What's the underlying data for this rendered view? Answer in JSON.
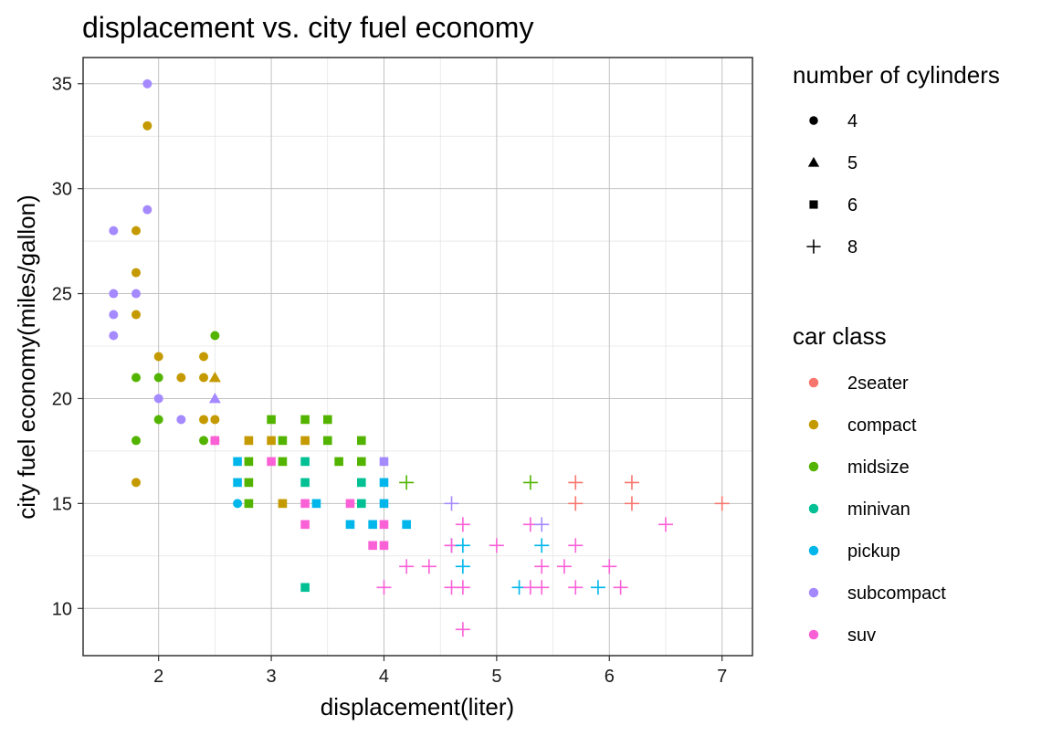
{
  "chart_data": {
    "type": "scatter",
    "title": "displacement vs. city fuel economy",
    "xlabel": "displacement(liter)",
    "ylabel": "city fuel economy(miles/gallon)",
    "xlim": [
      1.33,
      7.27
    ],
    "ylim": [
      7.75,
      36.25
    ],
    "xticks": [
      2,
      3,
      4,
      5,
      6,
      7
    ],
    "yticks": [
      10,
      15,
      20,
      25,
      30,
      35
    ],
    "grid": true,
    "legend_position": "right",
    "legends": {
      "shape": {
        "title": "number of cylinders",
        "entries": [
          {
            "label": "4",
            "shape": "circle"
          },
          {
            "label": "5",
            "shape": "triangle"
          },
          {
            "label": "6",
            "shape": "square"
          },
          {
            "label": "8",
            "shape": "plus"
          }
        ]
      },
      "color": {
        "title": "car class",
        "entries": [
          {
            "label": "2seater",
            "color": "#F8766D"
          },
          {
            "label": "compact",
            "color": "#C49A00"
          },
          {
            "label": "midsize",
            "color": "#53B400"
          },
          {
            "label": "minivan",
            "color": "#00C094"
          },
          {
            "label": "pickup",
            "color": "#00B6EB"
          },
          {
            "label": "subcompact",
            "color": "#A58AFF"
          },
          {
            "label": "suv",
            "color": "#FB61D7"
          }
        ]
      }
    },
    "points": [
      {
        "x": 1.6,
        "y": 28,
        "cyl": "4",
        "class": "subcompact"
      },
      {
        "x": 1.6,
        "y": 25,
        "cyl": "4",
        "class": "subcompact"
      },
      {
        "x": 1.6,
        "y": 24,
        "cyl": "4",
        "class": "subcompact"
      },
      {
        "x": 1.6,
        "y": 23,
        "cyl": "4",
        "class": "subcompact"
      },
      {
        "x": 1.8,
        "y": 28,
        "cyl": "4",
        "class": "compact"
      },
      {
        "x": 1.8,
        "y": 26,
        "cyl": "4",
        "class": "compact"
      },
      {
        "x": 1.8,
        "y": 25,
        "cyl": "4",
        "class": "subcompact"
      },
      {
        "x": 1.8,
        "y": 24,
        "cyl": "4",
        "class": "compact"
      },
      {
        "x": 1.8,
        "y": 21,
        "cyl": "4",
        "class": "midsize"
      },
      {
        "x": 1.8,
        "y": 18,
        "cyl": "4",
        "class": "midsize"
      },
      {
        "x": 1.8,
        "y": 16,
        "cyl": "4",
        "class": "compact"
      },
      {
        "x": 1.9,
        "y": 35,
        "cyl": "4",
        "class": "subcompact"
      },
      {
        "x": 1.9,
        "y": 33,
        "cyl": "4",
        "class": "compact"
      },
      {
        "x": 1.9,
        "y": 29,
        "cyl": "4",
        "class": "subcompact"
      },
      {
        "x": 2.0,
        "y": 22,
        "cyl": "4",
        "class": "compact"
      },
      {
        "x": 2.0,
        "y": 21,
        "cyl": "4",
        "class": "midsize"
      },
      {
        "x": 2.0,
        "y": 20,
        "cyl": "4",
        "class": "subcompact"
      },
      {
        "x": 2.0,
        "y": 19,
        "cyl": "4",
        "class": "midsize"
      },
      {
        "x": 2.2,
        "y": 21,
        "cyl": "4",
        "class": "compact"
      },
      {
        "x": 2.2,
        "y": 19,
        "cyl": "4",
        "class": "subcompact"
      },
      {
        "x": 2.4,
        "y": 22,
        "cyl": "4",
        "class": "compact"
      },
      {
        "x": 2.4,
        "y": 21,
        "cyl": "4",
        "class": "compact"
      },
      {
        "x": 2.4,
        "y": 19,
        "cyl": "4",
        "class": "compact"
      },
      {
        "x": 2.4,
        "y": 18,
        "cyl": "4",
        "class": "midsize"
      },
      {
        "x": 2.5,
        "y": 23,
        "cyl": "4",
        "class": "midsize"
      },
      {
        "x": 2.5,
        "y": 21,
        "cyl": "5",
        "class": "compact"
      },
      {
        "x": 2.5,
        "y": 20,
        "cyl": "5",
        "class": "subcompact"
      },
      {
        "x": 2.5,
        "y": 19,
        "cyl": "4",
        "class": "compact"
      },
      {
        "x": 2.5,
        "y": 18,
        "cyl": "4",
        "class": "compact"
      },
      {
        "x": 2.5,
        "y": 18,
        "cyl": "6",
        "class": "suv"
      },
      {
        "x": 2.7,
        "y": 17,
        "cyl": "6",
        "class": "pickup"
      },
      {
        "x": 2.7,
        "y": 16,
        "cyl": "6",
        "class": "pickup"
      },
      {
        "x": 2.7,
        "y": 15,
        "cyl": "4",
        "class": "pickup"
      },
      {
        "x": 2.8,
        "y": 18,
        "cyl": "6",
        "class": "compact"
      },
      {
        "x": 2.8,
        "y": 17,
        "cyl": "6",
        "class": "midsize"
      },
      {
        "x": 2.8,
        "y": 16,
        "cyl": "6",
        "class": "midsize"
      },
      {
        "x": 2.8,
        "y": 15,
        "cyl": "6",
        "class": "midsize"
      },
      {
        "x": 3.0,
        "y": 19,
        "cyl": "6",
        "class": "midsize"
      },
      {
        "x": 3.0,
        "y": 18,
        "cyl": "6",
        "class": "compact"
      },
      {
        "x": 3.0,
        "y": 17,
        "cyl": "6",
        "class": "suv"
      },
      {
        "x": 3.1,
        "y": 18,
        "cyl": "6",
        "class": "midsize"
      },
      {
        "x": 3.1,
        "y": 17,
        "cyl": "6",
        "class": "midsize"
      },
      {
        "x": 3.1,
        "y": 15,
        "cyl": "6",
        "class": "compact"
      },
      {
        "x": 3.3,
        "y": 19,
        "cyl": "6",
        "class": "midsize"
      },
      {
        "x": 3.3,
        "y": 18,
        "cyl": "6",
        "class": "compact"
      },
      {
        "x": 3.3,
        "y": 17,
        "cyl": "6",
        "class": "minivan"
      },
      {
        "x": 3.3,
        "y": 16,
        "cyl": "6",
        "class": "minivan"
      },
      {
        "x": 3.3,
        "y": 15,
        "cyl": "6",
        "class": "suv"
      },
      {
        "x": 3.3,
        "y": 14,
        "cyl": "6",
        "class": "suv"
      },
      {
        "x": 3.3,
        "y": 11,
        "cyl": "6",
        "class": "minivan"
      },
      {
        "x": 3.4,
        "y": 15,
        "cyl": "6",
        "class": "pickup"
      },
      {
        "x": 3.5,
        "y": 19,
        "cyl": "6",
        "class": "midsize"
      },
      {
        "x": 3.5,
        "y": 18,
        "cyl": "6",
        "class": "midsize"
      },
      {
        "x": 3.6,
        "y": 17,
        "cyl": "6",
        "class": "midsize"
      },
      {
        "x": 3.7,
        "y": 15,
        "cyl": "6",
        "class": "suv"
      },
      {
        "x": 3.7,
        "y": 14,
        "cyl": "6",
        "class": "pickup"
      },
      {
        "x": 3.8,
        "y": 18,
        "cyl": "6",
        "class": "midsize"
      },
      {
        "x": 3.8,
        "y": 17,
        "cyl": "6",
        "class": "midsize"
      },
      {
        "x": 3.8,
        "y": 16,
        "cyl": "6",
        "class": "minivan"
      },
      {
        "x": 3.8,
        "y": 15,
        "cyl": "6",
        "class": "minivan"
      },
      {
        "x": 3.9,
        "y": 14,
        "cyl": "6",
        "class": "pickup"
      },
      {
        "x": 3.9,
        "y": 13,
        "cyl": "6",
        "class": "suv"
      },
      {
        "x": 4.0,
        "y": 17,
        "cyl": "6",
        "class": "subcompact"
      },
      {
        "x": 4.0,
        "y": 16,
        "cyl": "6",
        "class": "pickup"
      },
      {
        "x": 4.0,
        "y": 15,
        "cyl": "6",
        "class": "pickup"
      },
      {
        "x": 4.0,
        "y": 14,
        "cyl": "6",
        "class": "suv"
      },
      {
        "x": 4.0,
        "y": 13,
        "cyl": "6",
        "class": "suv"
      },
      {
        "x": 4.0,
        "y": 11,
        "cyl": "8",
        "class": "suv"
      },
      {
        "x": 4.2,
        "y": 16,
        "cyl": "8",
        "class": "midsize"
      },
      {
        "x": 4.2,
        "y": 14,
        "cyl": "6",
        "class": "pickup"
      },
      {
        "x": 4.2,
        "y": 12,
        "cyl": "8",
        "class": "suv"
      },
      {
        "x": 4.4,
        "y": 12,
        "cyl": "8",
        "class": "suv"
      },
      {
        "x": 4.6,
        "y": 15,
        "cyl": "8",
        "class": "subcompact"
      },
      {
        "x": 4.6,
        "y": 13,
        "cyl": "8",
        "class": "subcompact"
      },
      {
        "x": 4.6,
        "y": 13,
        "cyl": "8",
        "class": "suv"
      },
      {
        "x": 4.6,
        "y": 11,
        "cyl": "8",
        "class": "suv"
      },
      {
        "x": 4.7,
        "y": 14,
        "cyl": "8",
        "class": "suv"
      },
      {
        "x": 4.7,
        "y": 13,
        "cyl": "8",
        "class": "pickup"
      },
      {
        "x": 4.7,
        "y": 12,
        "cyl": "8",
        "class": "pickup"
      },
      {
        "x": 4.7,
        "y": 11,
        "cyl": "8",
        "class": "suv"
      },
      {
        "x": 4.7,
        "y": 9,
        "cyl": "8",
        "class": "suv"
      },
      {
        "x": 5.0,
        "y": 13,
        "cyl": "8",
        "class": "suv"
      },
      {
        "x": 5.2,
        "y": 11,
        "cyl": "8",
        "class": "pickup"
      },
      {
        "x": 5.3,
        "y": 16,
        "cyl": "8",
        "class": "midsize"
      },
      {
        "x": 5.3,
        "y": 14,
        "cyl": "8",
        "class": "suv"
      },
      {
        "x": 5.3,
        "y": 11,
        "cyl": "8",
        "class": "suv"
      },
      {
        "x": 5.4,
        "y": 14,
        "cyl": "8",
        "class": "subcompact"
      },
      {
        "x": 5.4,
        "y": 13,
        "cyl": "8",
        "class": "pickup"
      },
      {
        "x": 5.4,
        "y": 12,
        "cyl": "8",
        "class": "suv"
      },
      {
        "x": 5.4,
        "y": 11,
        "cyl": "8",
        "class": "suv"
      },
      {
        "x": 5.6,
        "y": 12,
        "cyl": "8",
        "class": "suv"
      },
      {
        "x": 5.7,
        "y": 16,
        "cyl": "8",
        "class": "2seater"
      },
      {
        "x": 5.7,
        "y": 15,
        "cyl": "8",
        "class": "2seater"
      },
      {
        "x": 5.7,
        "y": 13,
        "cyl": "8",
        "class": "suv"
      },
      {
        "x": 5.7,
        "y": 11,
        "cyl": "8",
        "class": "suv"
      },
      {
        "x": 5.9,
        "y": 11,
        "cyl": "8",
        "class": "pickup"
      },
      {
        "x": 6.0,
        "y": 12,
        "cyl": "8",
        "class": "suv"
      },
      {
        "x": 6.1,
        "y": 11,
        "cyl": "8",
        "class": "suv"
      },
      {
        "x": 6.2,
        "y": 16,
        "cyl": "8",
        "class": "2seater"
      },
      {
        "x": 6.2,
        "y": 15,
        "cyl": "8",
        "class": "2seater"
      },
      {
        "x": 6.5,
        "y": 14,
        "cyl": "8",
        "class": "suv"
      },
      {
        "x": 7.0,
        "y": 15,
        "cyl": "8",
        "class": "2seater"
      }
    ]
  }
}
